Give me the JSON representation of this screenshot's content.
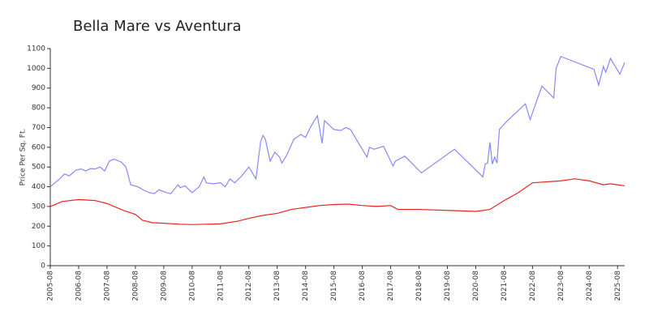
{
  "chart_data": {
    "type": "line",
    "title": "Bella Mare vs Aventura",
    "y_label": "Price Per Sq. Ft.",
    "xlim": [
      "2005-08",
      "2025-11"
    ],
    "xticks": [
      "2005-08",
      "2006-08",
      "2007-08",
      "2008-08",
      "2009-08",
      "2010-08",
      "2011-08",
      "2012-08",
      "2013-08",
      "2014-08",
      "2015-08",
      "2016-08",
      "2017-08",
      "2018-08",
      "2019-08",
      "2020-08",
      "2021-08",
      "2022-08",
      "2023-08",
      "2024-08",
      "2025-08"
    ],
    "ylim": [
      0,
      1100
    ],
    "yticks": [
      0,
      100,
      200,
      300,
      400,
      500,
      600,
      700,
      800,
      900,
      1000,
      1100
    ],
    "series": [
      {
        "color": "#8888ff",
        "x": [
          "2005-08",
          "2005-12",
          "2006-02",
          "2006-04",
          "2006-07",
          "2006-09",
          "2006-11",
          "2007-01",
          "2007-03",
          "2007-05",
          "2007-07",
          "2007-09",
          "2007-11",
          "2008-02",
          "2008-04",
          "2008-06",
          "2008-09",
          "2008-12",
          "2009-02",
          "2009-04",
          "2009-06",
          "2009-09",
          "2009-11",
          "2010-02",
          "2010-03",
          "2010-05",
          "2010-08",
          "2010-11",
          "2011-01",
          "2011-02",
          "2011-05",
          "2011-08",
          "2011-10",
          "2011-12",
          "2012-02",
          "2012-05",
          "2012-08",
          "2012-11",
          "2013-01",
          "2013-02",
          "2013-03",
          "2013-05",
          "2013-07",
          "2013-09",
          "2013-10",
          "2013-12",
          "2014-03",
          "2014-06",
          "2014-08",
          "2014-10",
          "2015-01",
          "2015-03",
          "2015-04",
          "2015-08",
          "2015-11",
          "2016-01",
          "2016-03",
          "2016-10",
          "2016-11",
          "2017-01",
          "2017-05",
          "2017-09",
          "2017-10",
          "2018-02",
          "2018-09",
          "2019-11",
          "2020-11",
          "2020-12",
          "2021-01",
          "2021-02",
          "2021-03",
          "2021-04",
          "2021-05",
          "2021-06",
          "2021-09",
          "2022-05",
          "2022-07",
          "2022-12",
          "2023-05",
          "2023-06",
          "2023-08",
          "2024-10",
          "2024-12",
          "2025-02",
          "2025-03",
          "2025-05",
          "2025-09",
          "2025-11"
        ],
        "values": [
          400,
          440,
          465,
          455,
          485,
          490,
          480,
          492,
          490,
          500,
          480,
          530,
          540,
          525,
          500,
          410,
          400,
          380,
          370,
          365,
          385,
          370,
          365,
          410,
          395,
          405,
          370,
          400,
          450,
          420,
          415,
          420,
          400,
          440,
          420,
          455,
          500,
          440,
          630,
          660,
          640,
          530,
          575,
          550,
          520,
          560,
          640,
          665,
          650,
          700,
          760,
          620,
          735,
          690,
          685,
          700,
          690,
          550,
          600,
          590,
          605,
          505,
          530,
          555,
          470,
          590,
          450,
          515,
          520,
          625,
          515,
          550,
          520,
          690,
          730,
          820,
          740,
          910,
          850,
          1000,
          1060,
          995,
          915,
          1010,
          980,
          1050,
          970,
          1030
        ]
      },
      {
        "color": "#ee2222",
        "x": [
          "2005-08",
          "2006-01",
          "2006-08",
          "2007-03",
          "2007-08",
          "2008-03",
          "2008-08",
          "2008-11",
          "2009-03",
          "2009-08",
          "2010-03",
          "2010-08",
          "2011-08",
          "2012-03",
          "2012-08",
          "2013-02",
          "2013-08",
          "2014-02",
          "2014-08",
          "2015-02",
          "2015-08",
          "2016-02",
          "2016-08",
          "2017-02",
          "2017-08",
          "2017-11",
          "2018-08",
          "2019-08",
          "2020-08",
          "2021-02",
          "2021-08",
          "2022-02",
          "2022-08",
          "2023-08",
          "2024-02",
          "2024-08",
          "2025-02",
          "2025-05",
          "2025-11"
        ],
        "values": [
          300,
          325,
          335,
          330,
          315,
          280,
          260,
          230,
          218,
          215,
          210,
          208,
          212,
          225,
          240,
          255,
          265,
          285,
          295,
          305,
          310,
          312,
          305,
          300,
          305,
          285,
          285,
          280,
          275,
          285,
          330,
          370,
          420,
          430,
          440,
          430,
          410,
          415,
          405
        ]
      }
    ]
  }
}
